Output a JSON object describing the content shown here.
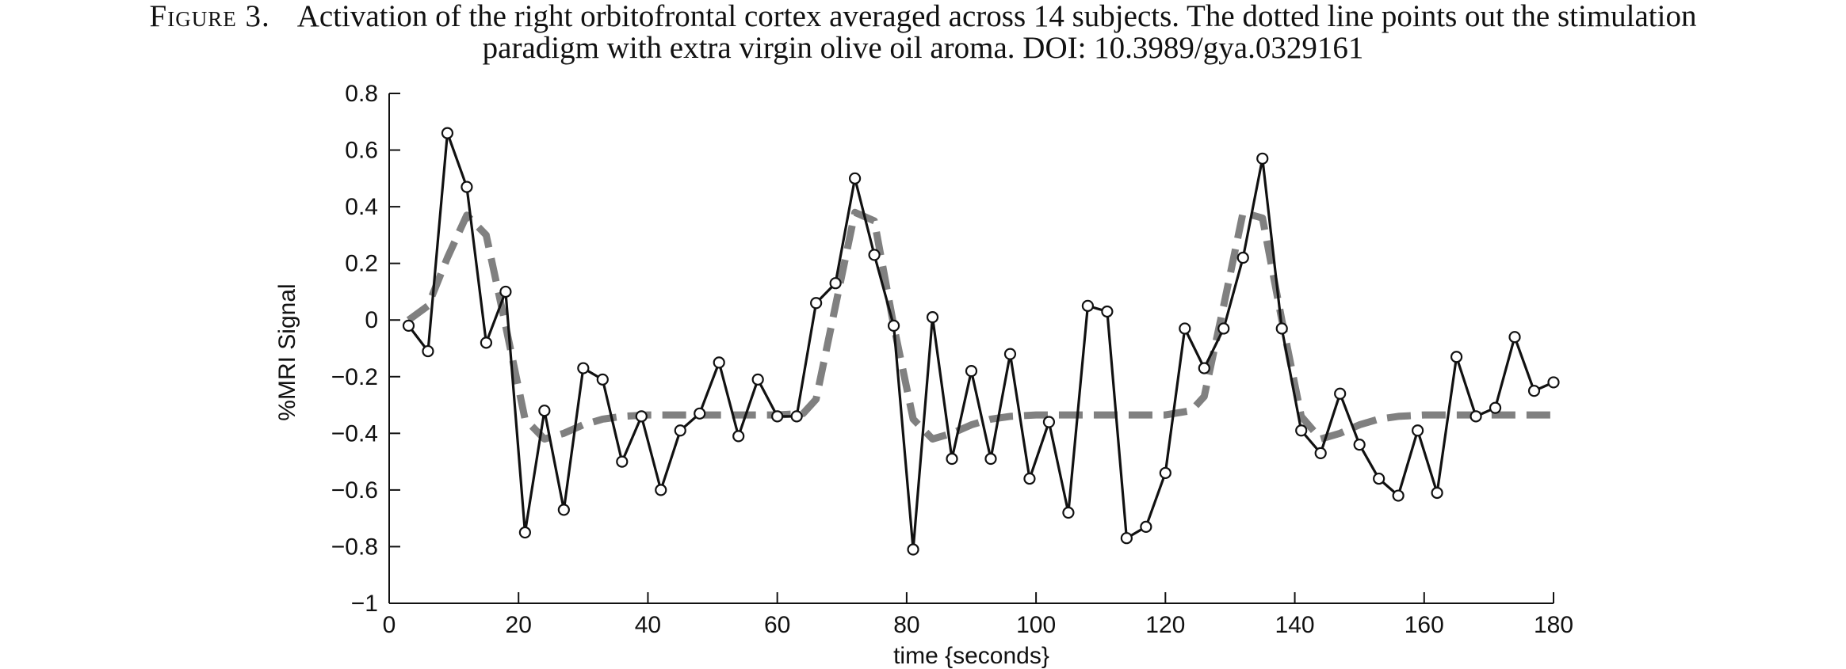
{
  "caption": {
    "label": "Figure 3.",
    "line1": "Activation of the right orbitofrontal cortex averaged across 14 subjects. The dotted line points out the stimulation",
    "line2": "paradigm with extra virgin olive oil aroma. DOI: 10.3989/gya.0329161"
  },
  "chart_data": {
    "type": "line",
    "xlabel": "time {seconds}",
    "ylabel": "%MRI Signal",
    "xlim": [
      0,
      180
    ],
    "ylim": [
      -1,
      0.8
    ],
    "xticks": [
      0,
      20,
      40,
      60,
      80,
      100,
      120,
      140,
      160,
      180
    ],
    "xtick_labels": [
      "0",
      "20",
      "40",
      "60",
      "80",
      "100",
      "120",
      "140",
      "160",
      "180"
    ],
    "yticks": [
      -1,
      -0.8,
      -0.6,
      -0.4,
      -0.2,
      0,
      0.2,
      0.4,
      0.6,
      0.8
    ],
    "ytick_labels": [
      "−1",
      "−0.8",
      "−0.6",
      "−0.4",
      "−0.2",
      "0",
      "0.2",
      "0.4",
      "0.6",
      "0.8"
    ],
    "grid": false,
    "series": [
      {
        "style": "solid",
        "color": "#111111",
        "markers": "open-circle",
        "x": [
          3,
          6,
          9,
          12,
          15,
          18,
          21,
          24,
          27,
          30,
          33,
          36,
          39,
          42,
          45,
          48,
          51,
          54,
          57,
          60,
          63,
          66,
          69,
          72,
          75,
          78,
          81,
          84,
          87,
          90,
          93,
          96,
          99,
          102,
          105,
          108,
          111,
          114,
          117,
          120,
          123,
          126,
          129,
          132,
          135,
          138,
          141,
          144,
          147,
          150,
          153,
          156,
          159,
          162,
          165,
          168,
          171,
          174,
          177,
          180
        ],
        "y": [
          -0.02,
          -0.11,
          0.66,
          0.47,
          -0.08,
          0.1,
          -0.75,
          -0.32,
          -0.67,
          -0.17,
          -0.21,
          -0.5,
          -0.34,
          -0.6,
          -0.39,
          -0.33,
          -0.15,
          -0.41,
          -0.21,
          -0.34,
          -0.34,
          0.06,
          0.13,
          0.5,
          0.23,
          -0.02,
          -0.81,
          0.01,
          -0.49,
          -0.18,
          -0.49,
          -0.12,
          -0.56,
          -0.36,
          -0.68,
          0.05,
          0.03,
          -0.77,
          -0.73,
          -0.54,
          -0.03,
          -0.17,
          -0.03,
          0.22,
          0.57,
          -0.03,
          -0.39,
          -0.47,
          -0.26,
          -0.44,
          -0.56,
          -0.62,
          -0.39,
          -0.61,
          -0.13,
          -0.34,
          -0.31,
          -0.06,
          -0.25,
          -0.22
        ]
      },
      {
        "style": "dashed",
        "color": "#808080",
        "x": [
          3,
          6,
          9,
          12,
          15,
          18,
          21,
          24,
          27,
          30,
          33,
          36,
          40,
          50,
          60,
          64,
          66,
          69,
          72,
          75,
          78,
          81,
          84,
          87,
          90,
          93,
          96,
          100,
          110,
          120,
          124,
          126,
          129,
          132,
          135,
          138,
          141,
          144,
          147,
          150,
          153,
          156,
          160,
          170,
          180
        ],
        "y": [
          0.0,
          0.05,
          0.22,
          0.37,
          0.3,
          -0.02,
          -0.35,
          -0.42,
          -0.4,
          -0.37,
          -0.35,
          -0.34,
          -0.335,
          -0.335,
          -0.335,
          -0.33,
          -0.28,
          0.05,
          0.38,
          0.35,
          -0.02,
          -0.35,
          -0.42,
          -0.4,
          -0.37,
          -0.35,
          -0.34,
          -0.335,
          -0.335,
          -0.335,
          -0.32,
          -0.27,
          0.05,
          0.38,
          0.36,
          0.0,
          -0.34,
          -0.42,
          -0.4,
          -0.37,
          -0.35,
          -0.34,
          -0.335,
          -0.335,
          -0.335
        ]
      }
    ]
  }
}
